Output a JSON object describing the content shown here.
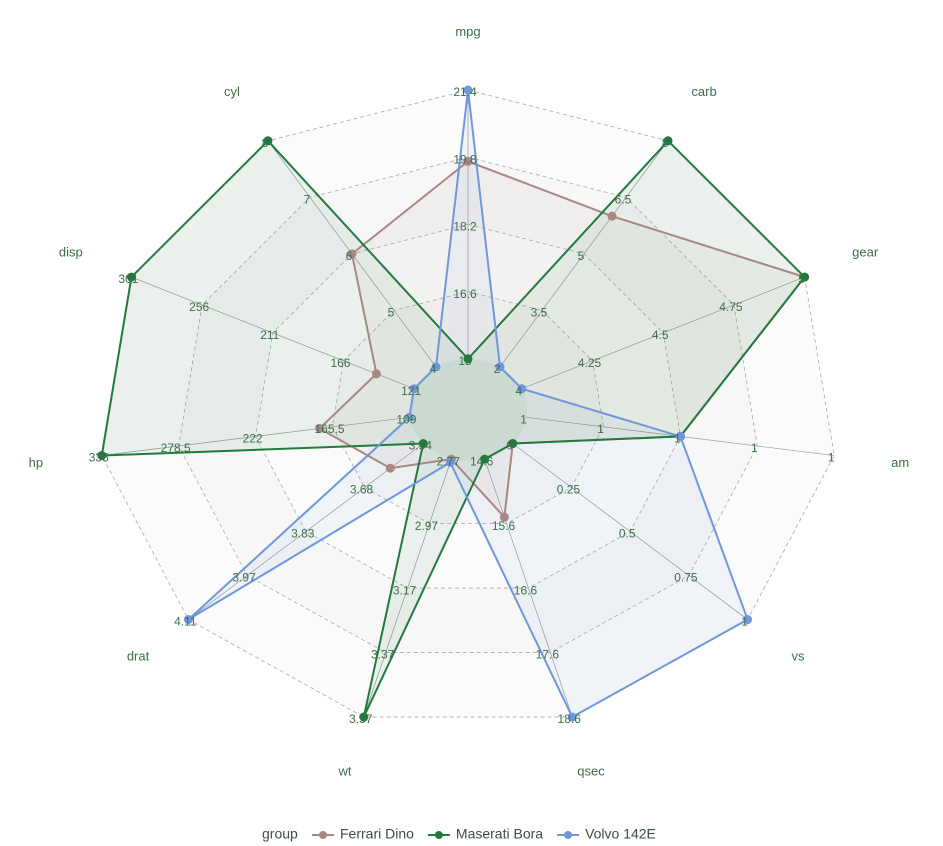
{
  "chart_data": {
    "type": "radar",
    "axes": [
      "mpg",
      "carb",
      "gear",
      "am",
      "vs",
      "qsec",
      "wt",
      "drat",
      "hp",
      "disp",
      "cyl"
    ],
    "axis_ticks": [
      [
        15,
        16.6,
        18.2,
        19.8,
        21.4
      ],
      [
        2,
        3.5,
        5,
        6.5,
        8
      ],
      [
        4,
        4.25,
        4.5,
        4.75,
        5
      ],
      [
        1,
        1,
        1,
        1,
        1
      ],
      [
        0,
        0.25,
        0.5,
        0.75,
        1
      ],
      [
        14.6,
        15.6,
        16.6,
        17.6,
        18.6
      ],
      [
        2.77,
        2.97,
        3.17,
        3.37,
        3.57
      ],
      [
        3.54,
        3.68,
        3.83,
        3.97,
        4.11
      ],
      [
        109,
        165.5,
        222,
        278.5,
        335
      ],
      [
        121,
        166,
        211,
        256,
        301
      ],
      [
        4,
        5,
        6,
        7,
        8
      ]
    ],
    "legend_title": "group",
    "series": [
      {
        "name": "Ferrari Dino",
        "color": "#a98782",
        "values": [
          19.7,
          6,
          5,
          1,
          0,
          15.5,
          2.77,
          3.62,
          175,
          145,
          6
        ]
      },
      {
        "name": "Maserati Bora",
        "color": "#227a3c",
        "values": [
          15,
          8,
          5,
          1,
          0,
          14.6,
          3.57,
          3.54,
          335,
          301,
          8
        ]
      },
      {
        "name": "Volvo 142E",
        "color": "#6f97dc",
        "values": [
          21.4,
          2,
          4,
          1,
          1,
          18.6,
          2.78,
          4.11,
          109,
          121,
          4
        ]
      }
    ]
  }
}
